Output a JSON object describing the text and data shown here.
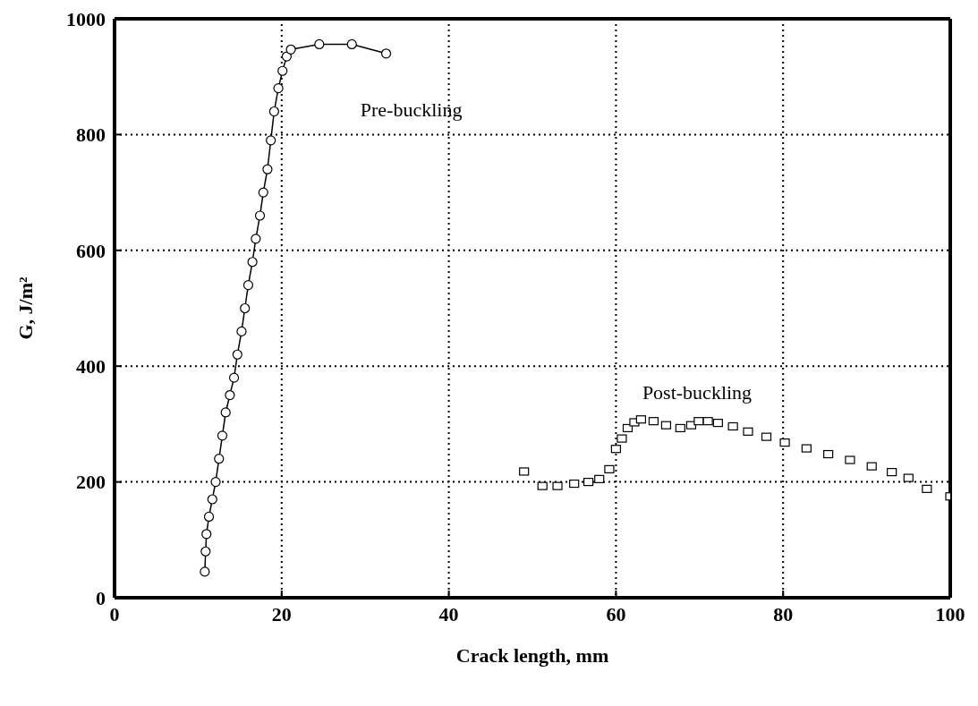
{
  "chart_data": {
    "type": "scatter",
    "xlabel": "Crack length, mm",
    "ylabel": "G, J/m²",
    "xlim": [
      0,
      100
    ],
    "ylim": [
      0,
      1000
    ],
    "xticks": [
      0,
      20,
      40,
      60,
      80,
      100
    ],
    "yticks": [
      0,
      200,
      400,
      600,
      800,
      1000
    ],
    "grid": true,
    "legend": false,
    "series": [
      {
        "name": "Pre-buckling",
        "type": "line",
        "marker": "circle",
        "line_style": "solid",
        "color": "#000000",
        "x": [
          10.8,
          10.9,
          11.0,
          11.3,
          11.7,
          12.1,
          12.5,
          12.9,
          13.3,
          13.8,
          14.3,
          14.7,
          15.2,
          15.6,
          16.0,
          16.5,
          16.9,
          17.4,
          17.8,
          18.3,
          18.7,
          19.1,
          19.6,
          20.1,
          20.6,
          21.1,
          24.5,
          28.4,
          32.5
        ],
        "values": [
          45,
          80,
          110,
          140,
          170,
          200,
          240,
          280,
          320,
          350,
          380,
          420,
          460,
          500,
          540,
          580,
          620,
          660,
          700,
          740,
          790,
          840,
          880,
          910,
          935,
          947,
          956,
          956,
          940
        ]
      },
      {
        "name": "Post-buckling",
        "marker": "square",
        "color": "#000000",
        "x": [
          49.0,
          51.2,
          53.0,
          55.0,
          56.7,
          58.0,
          59.2,
          60.0,
          60.7,
          61.4,
          62.2,
          63.0,
          64.5,
          66.0,
          67.7,
          69.0,
          69.9,
          71.0,
          72.2,
          74.0,
          75.8,
          78.0,
          80.2,
          82.8,
          85.4,
          88.0,
          90.6,
          93.0,
          95.0,
          97.2,
          100.0
        ],
        "values": [
          218,
          193,
          193,
          197,
          200,
          205,
          222,
          257,
          275,
          293,
          303,
          308,
          305,
          298,
          293,
          298,
          305,
          305,
          302,
          296,
          287,
          278,
          268,
          258,
          248,
          238,
          227,
          217,
          207,
          188,
          175
        ]
      }
    ]
  }
}
